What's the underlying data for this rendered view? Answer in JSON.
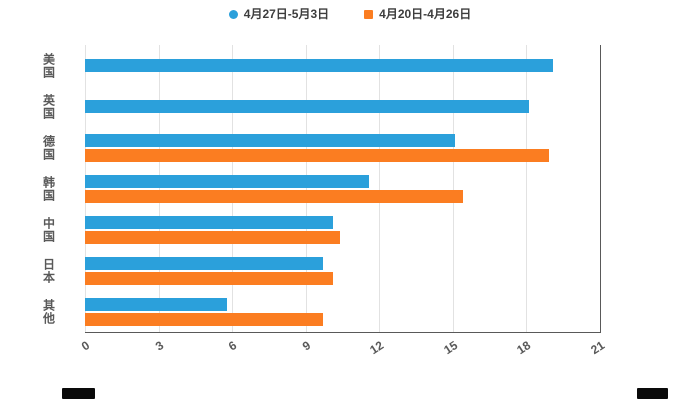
{
  "chart_data": {
    "type": "bar",
    "orientation": "horizontal",
    "title": "",
    "categories": [
      "美国",
      "英国",
      "德国",
      "韩国",
      "中国",
      "日本",
      "其他"
    ],
    "series": [
      {
        "name": "4月27日-5月3日",
        "color": "#2BA0DB",
        "marker": "circle",
        "values": [
          19.1,
          18.1,
          15.1,
          11.6,
          10.1,
          9.7,
          5.8
        ]
      },
      {
        "name": "4月20日-4月26日",
        "color": "#FB7D21",
        "marker": "square",
        "values": [
          null,
          null,
          18.9,
          15.4,
          10.4,
          10.1,
          9.7
        ]
      }
    ],
    "xlim": [
      0,
      21
    ],
    "xticks": [
      0,
      3,
      6,
      9,
      12,
      15,
      18,
      21
    ],
    "grid": true,
    "legend_position": "top"
  },
  "styles": {
    "background": "#ffffff",
    "grid_color": "#e2e2e2",
    "axis_color": "#595959",
    "label_color": "#595959",
    "legend_text_color": "#3d3d3d"
  }
}
